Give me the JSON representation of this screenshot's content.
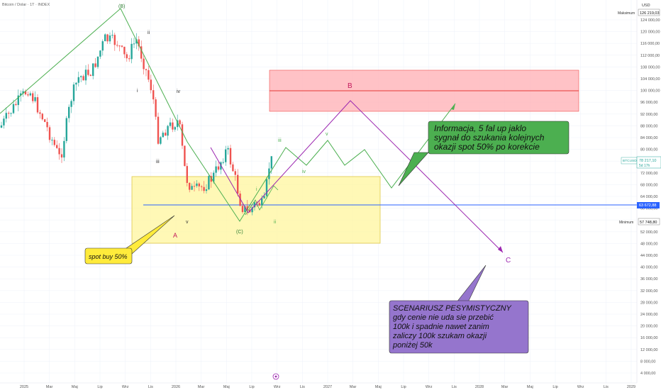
{
  "header": {
    "symbol_title": "Bitcoin / Dolar · 1T · INDEX"
  },
  "price_axis": {
    "currency": "USD",
    "ticks": [
      "124 000,00",
      "120 000,00",
      "116 000,00",
      "112 000,00",
      "108 000,00",
      "104 000,00",
      "100 000,00",
      "96 000,00",
      "92 000,00",
      "88 000,00",
      "84 000,00",
      "80 000,00",
      "76 000,00",
      "72 000,00",
      "68 000,00",
      "64 000,00",
      "60 000,00",
      "56 000,00",
      "52 000,00",
      "48 000,00",
      "44 000,00",
      "40 000,00",
      "36 000,00",
      "32 000,00",
      "28 000,00",
      "24 000,00",
      "20 000,00",
      "16 000,00",
      "12 000,00",
      "8 000,00",
      "4 000,00"
    ],
    "max_label": "Maksimum",
    "max_value": "126 219,03",
    "min_label": "Minimum",
    "min_value": "57 748,80",
    "last_symbol": "BTCUSD",
    "last_price": "78 217,10",
    "last_sub": "5d 17h",
    "line_price": "63 672,88"
  },
  "time_axis": [
    "2025",
    "Mar",
    "Maj",
    "Lip",
    "Wrz",
    "Lis",
    "2026",
    "Mar",
    "Maj",
    "Lip",
    "Wrz",
    "Lis",
    "2027",
    "Mar",
    "Maj",
    "Lip",
    "Wrz",
    "Lis",
    "2028",
    "Mar",
    "Maj",
    "Lip",
    "Wrz",
    "Lis",
    "2029"
  ],
  "waves": {
    "B_paren": "(B)",
    "C_paren": "(C)",
    "A": "A",
    "B": "B",
    "C": "C",
    "ii_top": "ii",
    "i": "i",
    "iv_top": "iv",
    "iii_left": "iii",
    "v_low": "v",
    "iii_green": "iii",
    "v_green": "v",
    "iv_green": "iv",
    "ii_green": "ii",
    "i_green": "i"
  },
  "annotations": {
    "green_note": [
      "Informacja, 5 fal up jaklo",
      "sygnał do szukania kolejnych",
      "okazji spot 50% po korekcie"
    ],
    "yellow_note": "spot buy 50%",
    "purple_note": [
      "SCENARIUSZ PESYMISTYCZNY",
      " gdy cenie nie uda sie przebić",
      "100k i spadnie nawet zanim",
      "zaliczy 100k szukam okazji",
      "poniżej 50k"
    ]
  },
  "colors": {
    "up": "#26a69a",
    "down": "#ef5350",
    "zone_yellow": "#fff59d",
    "zone_red": "#ffb3b8",
    "green_line": "#4caf50",
    "purple_line": "#9c27b0",
    "blue_line": "#2962ff"
  },
  "chart_data": {
    "type": "candlestick",
    "period": "1 week",
    "y_scale": "log",
    "ylim": [
      4000,
      128000
    ],
    "x_range": [
      "2025",
      "2029"
    ],
    "max": 126219.03,
    "min": 57748.8,
    "last": 78217.1,
    "horizontal_line": 63672.88,
    "zones": [
      {
        "name": "buy zone",
        "from": 52000,
        "to": 74500,
        "start": "2025-W46",
        "end": "2026-W45"
      },
      {
        "name": "target zone",
        "from": 94000,
        "to": 109000,
        "start": "2026-W40",
        "end": "2027-W24"
      }
    ]
  }
}
